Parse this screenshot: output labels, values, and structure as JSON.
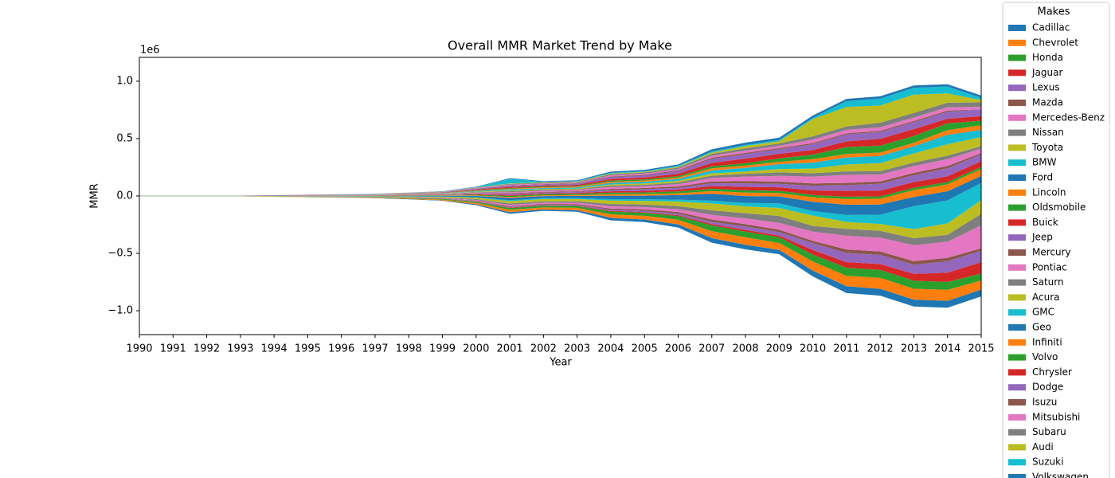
{
  "chart_data": {
    "type": "stream",
    "title": "Overall MMR Market Trend by Make",
    "x_label": "Year",
    "y_label": "MMR",
    "y_offset_label": "1e6",
    "legend_title": "Makes",
    "legend_position": "outside right",
    "x": [
      1990,
      1991,
      1992,
      1993,
      1994,
      1995,
      1996,
      1997,
      1998,
      1999,
      2000,
      2001,
      2002,
      2003,
      2004,
      2005,
      2006,
      2007,
      2008,
      2009,
      2010,
      2011,
      2012,
      2013,
      2014,
      2015
    ],
    "xlim": [
      1990,
      2015
    ],
    "xticks": [
      1990,
      1991,
      1992,
      1993,
      1994,
      1995,
      1996,
      1997,
      1998,
      1999,
      2000,
      2001,
      2002,
      2003,
      2004,
      2005,
      2006,
      2007,
      2008,
      2009,
      2010,
      2011,
      2012,
      2013,
      2014,
      2015
    ],
    "ylim": [
      -1208000,
      1208000
    ],
    "yticks": [
      {
        "value": -1000000,
        "label": "−1.0"
      },
      {
        "value": -500000,
        "label": "−0.5"
      },
      {
        "value": 0,
        "label": "0.0"
      },
      {
        "value": 500000,
        "label": "0.5"
      },
      {
        "value": 1000000,
        "label": "1.0"
      }
    ],
    "series": [
      {
        "name": "Cadillac",
        "color": "#1f77b4",
        "values": [
          0,
          0,
          0,
          0,
          1000,
          1000,
          1000,
          2000,
          3000,
          4000,
          8000,
          14000,
          12000,
          14000,
          22000,
          22000,
          28000,
          40000,
          40000,
          38000,
          50000,
          60000,
          60000,
          60000,
          60000,
          60000
        ]
      },
      {
        "name": "Chevrolet",
        "color": "#ff7f0e",
        "values": [
          1000,
          1000,
          1000,
          1000,
          2000,
          2000,
          2000,
          3000,
          5000,
          7000,
          12000,
          20000,
          18000,
          20000,
          30000,
          32000,
          40000,
          60000,
          65000,
          60000,
          80000,
          90000,
          95000,
          95000,
          95000,
          80000
        ]
      },
      {
        "name": "Honda",
        "color": "#2ca02c",
        "values": [
          1000,
          1000,
          1000,
          1000,
          1000,
          2000,
          2000,
          3000,
          4000,
          6000,
          10000,
          16000,
          15000,
          16000,
          25000,
          26000,
          32000,
          50000,
          50000,
          50000,
          60000,
          70000,
          70000,
          70000,
          70000,
          60000
        ]
      },
      {
        "name": "Jaguar",
        "color": "#d62728",
        "values": [
          0,
          0,
          0,
          0,
          0,
          0,
          0,
          0,
          1000,
          1000,
          2000,
          4000,
          4000,
          4000,
          6000,
          6000,
          8000,
          12000,
          15000,
          15000,
          40000,
          50000,
          50000,
          60000,
          80000,
          100000
        ]
      },
      {
        "name": "Lexus",
        "color": "#9467bd",
        "values": [
          0,
          0,
          0,
          0,
          0,
          0,
          1000,
          1000,
          1000,
          2000,
          4000,
          6000,
          6000,
          6000,
          10000,
          12000,
          14000,
          20000,
          30000,
          30000,
          60000,
          80000,
          80000,
          80000,
          100000,
          100000
        ]
      },
      {
        "name": "Mazda",
        "color": "#8c564b",
        "values": [
          0,
          0,
          0,
          0,
          0,
          1000,
          1000,
          1000,
          1000,
          2000,
          4000,
          6000,
          6000,
          6000,
          10000,
          12000,
          14000,
          20000,
          20000,
          20000,
          20000,
          30000,
          30000,
          30000,
          30000,
          20000
        ]
      },
      {
        "name": "Mercedes-Benz",
        "color": "#e377c2",
        "values": [
          0,
          0,
          0,
          0,
          0,
          1000,
          1000,
          1000,
          2000,
          3000,
          6000,
          12000,
          10000,
          12000,
          20000,
          20000,
          25000,
          40000,
          50000,
          60000,
          80000,
          120000,
          120000,
          140000,
          140000,
          200000
        ]
      },
      {
        "name": "Nissan",
        "color": "#7f7f7f",
        "values": [
          1000,
          1000,
          1000,
          1000,
          1000,
          1000,
          1000,
          2000,
          3000,
          4000,
          8000,
          12000,
          12000,
          12000,
          20000,
          22000,
          26000,
          40000,
          45000,
          60000,
          50000,
          60000,
          60000,
          60000,
          60000,
          100000
        ]
      },
      {
        "name": "Toyota",
        "color": "#bcbd22",
        "values": [
          1000,
          1000,
          1000,
          1000,
          2000,
          2000,
          2000,
          3000,
          5000,
          7000,
          12000,
          20000,
          20000,
          20000,
          30000,
          32000,
          40000,
          60000,
          60000,
          70000,
          90000,
          60000,
          60000,
          80000,
          100000,
          120000
        ]
      },
      {
        "name": "BMW",
        "color": "#17becf",
        "values": [
          0,
          0,
          0,
          0,
          0,
          1000,
          1000,
          1000,
          2000,
          2000,
          4000,
          8000,
          8000,
          8000,
          12000,
          14000,
          16000,
          24000,
          30000,
          40000,
          40000,
          60000,
          80000,
          200000,
          200000,
          150000
        ]
      },
      {
        "name": "Ford",
        "color": "#1f77b4",
        "values": [
          1000,
          1000,
          1000,
          1000,
          2000,
          2000,
          2000,
          3000,
          5000,
          7000,
          12000,
          20000,
          18000,
          20000,
          30000,
          32000,
          40000,
          60000,
          60000,
          60000,
          80000,
          90000,
          90000,
          80000,
          80000,
          60000
        ]
      },
      {
        "name": "Lincoln",
        "color": "#ff7f0e",
        "values": [
          0,
          0,
          0,
          0,
          0,
          1000,
          1000,
          1000,
          2000,
          2000,
          4000,
          8000,
          6000,
          8000,
          12000,
          14000,
          16000,
          24000,
          30000,
          30000,
          40000,
          50000,
          50000,
          60000,
          60000,
          60000
        ]
      },
      {
        "name": "Oldsmobile",
        "color": "#2ca02c",
        "values": [
          1000,
          1000,
          1000,
          1000,
          1000,
          1000,
          1000,
          1000,
          2000,
          3000,
          6000,
          10000,
          10000,
          10000,
          14000,
          14000,
          16000,
          20000,
          20000,
          20000,
          20000,
          20000,
          20000,
          20000,
          20000,
          20000
        ]
      },
      {
        "name": "Buick",
        "color": "#d62728",
        "values": [
          0,
          0,
          0,
          0,
          1000,
          1000,
          1000,
          1000,
          2000,
          2000,
          4000,
          8000,
          6000,
          8000,
          12000,
          14000,
          16000,
          24000,
          30000,
          30000,
          40000,
          50000,
          50000,
          50000,
          50000,
          50000
        ]
      },
      {
        "name": "Jeep",
        "color": "#9467bd",
        "values": [
          0,
          0,
          0,
          0,
          0,
          1000,
          1000,
          1000,
          2000,
          2000,
          4000,
          8000,
          8000,
          8000,
          12000,
          14000,
          16000,
          24000,
          30000,
          30000,
          40000,
          50000,
          60000,
          60000,
          70000,
          60000
        ]
      },
      {
        "name": "Mercury",
        "color": "#8c564b",
        "values": [
          0,
          0,
          0,
          0,
          0,
          0,
          1000,
          1000,
          1000,
          2000,
          4000,
          6000,
          6000,
          6000,
          10000,
          10000,
          12000,
          16000,
          20000,
          20000,
          20000,
          20000,
          20000,
          20000,
          20000,
          10000
        ]
      },
      {
        "name": "Pontiac",
        "color": "#e377c2",
        "values": [
          0,
          0,
          0,
          0,
          1000,
          1000,
          1000,
          1000,
          2000,
          3000,
          6000,
          10000,
          10000,
          10000,
          16000,
          16000,
          20000,
          30000,
          40000,
          50000,
          60000,
          70000,
          60000,
          60000,
          60000,
          40000
        ]
      },
      {
        "name": "Saturn",
        "color": "#7f7f7f",
        "values": [
          0,
          0,
          0,
          0,
          0,
          1000,
          1000,
          1000,
          2000,
          2000,
          4000,
          8000,
          8000,
          8000,
          12000,
          12000,
          14000,
          20000,
          24000,
          30000,
          30000,
          30000,
          30000,
          30000,
          30000,
          20000
        ]
      },
      {
        "name": "Acura",
        "color": "#bcbd22",
        "values": [
          0,
          0,
          0,
          0,
          0,
          0,
          0,
          1000,
          1000,
          2000,
          4000,
          6000,
          6000,
          6000,
          10000,
          12000,
          14000,
          20000,
          20000,
          30000,
          40000,
          60000,
          70000,
          80000,
          100000,
          80000
        ]
      },
      {
        "name": "GMC",
        "color": "#17becf",
        "values": [
          0,
          0,
          0,
          0,
          0,
          0,
          1000,
          1000,
          1000,
          2000,
          4000,
          8000,
          8000,
          8000,
          12000,
          14000,
          16000,
          24000,
          30000,
          40000,
          50000,
          60000,
          60000,
          60000,
          80000,
          60000
        ]
      },
      {
        "name": "Geo",
        "color": "#1f77b4",
        "values": [
          1000,
          1000,
          1000,
          1000,
          1000,
          1000,
          1000,
          1000,
          1000,
          1000,
          2000,
          2000,
          2000,
          2000,
          2000,
          2000,
          2000,
          2000,
          2000,
          2000,
          2000,
          2000,
          2000,
          2000,
          2000,
          2000
        ]
      },
      {
        "name": "Infiniti",
        "color": "#ff7f0e",
        "values": [
          0,
          0,
          0,
          0,
          0,
          0,
          0,
          1000,
          1000,
          2000,
          4000,
          6000,
          6000,
          6000,
          10000,
          10000,
          12000,
          18000,
          20000,
          20000,
          30000,
          30000,
          30000,
          30000,
          40000,
          40000
        ]
      },
      {
        "name": "Volvo",
        "color": "#2ca02c",
        "values": [
          0,
          0,
          0,
          0,
          0,
          0,
          1000,
          1000,
          1000,
          2000,
          4000,
          6000,
          6000,
          6000,
          10000,
          10000,
          12000,
          18000,
          20000,
          30000,
          40000,
          60000,
          60000,
          60000,
          60000,
          40000
        ]
      },
      {
        "name": "Chrysler",
        "color": "#d62728",
        "values": [
          0,
          0,
          0,
          0,
          0,
          1000,
          1000,
          1000,
          2000,
          2000,
          6000,
          10000,
          8000,
          10000,
          14000,
          16000,
          20000,
          30000,
          40000,
          40000,
          40000,
          50000,
          60000,
          60000,
          40000,
          40000
        ]
      },
      {
        "name": "Dodge",
        "color": "#9467bd",
        "values": [
          0,
          0,
          0,
          0,
          1000,
          1000,
          1000,
          1000,
          2000,
          3000,
          6000,
          10000,
          10000,
          10000,
          16000,
          18000,
          22000,
          34000,
          40000,
          40000,
          50000,
          60000,
          60000,
          60000,
          60000,
          60000
        ]
      },
      {
        "name": "Isuzu",
        "color": "#8c564b",
        "values": [
          0,
          0,
          0,
          0,
          0,
          0,
          0,
          1000,
          1000,
          1000,
          2000,
          4000,
          4000,
          4000,
          6000,
          6000,
          8000,
          10000,
          10000,
          10000,
          10000,
          10000,
          10000,
          10000,
          10000,
          0
        ]
      },
      {
        "name": "Mitsubishi",
        "color": "#e377c2",
        "values": [
          0,
          0,
          0,
          0,
          0,
          0,
          1000,
          1000,
          1000,
          2000,
          4000,
          6000,
          6000,
          6000,
          10000,
          10000,
          12000,
          18000,
          20000,
          20000,
          30000,
          30000,
          30000,
          30000,
          30000,
          20000
        ]
      },
      {
        "name": "Subaru",
        "color": "#7f7f7f",
        "values": [
          0,
          0,
          0,
          0,
          0,
          0,
          0,
          1000,
          1000,
          2000,
          4000,
          6000,
          6000,
          6000,
          10000,
          10000,
          12000,
          16000,
          20000,
          20000,
          30000,
          30000,
          40000,
          40000,
          40000,
          40000
        ]
      },
      {
        "name": "Audi",
        "color": "#bcbd22",
        "values": [
          0,
          0,
          0,
          0,
          0,
          0,
          0,
          0,
          1000,
          1000,
          2000,
          4000,
          4000,
          4000,
          6000,
          6000,
          8000,
          12000,
          20000,
          20000,
          150000,
          170000,
          150000,
          160000,
          80000,
          20000
        ]
      },
      {
        "name": "Suzuki",
        "color": "#17becf",
        "values": [
          0,
          0,
          0,
          0,
          0,
          0,
          0,
          0,
          0,
          1000,
          2000,
          40000,
          4000,
          4000,
          6000,
          6000,
          8000,
          10000,
          10000,
          10000,
          10000,
          50000,
          60000,
          60000,
          60000,
          20000
        ]
      },
      {
        "name": "Volkswagen",
        "color": "#1f77b4",
        "values": [
          0,
          0,
          0,
          0,
          0,
          0,
          1000,
          1000,
          1000,
          2000,
          4000,
          6000,
          6000,
          6000,
          10000,
          10000,
          12000,
          18000,
          20000,
          20000,
          20000,
          20000,
          20000,
          20000,
          20000,
          20000
        ]
      }
    ]
  }
}
